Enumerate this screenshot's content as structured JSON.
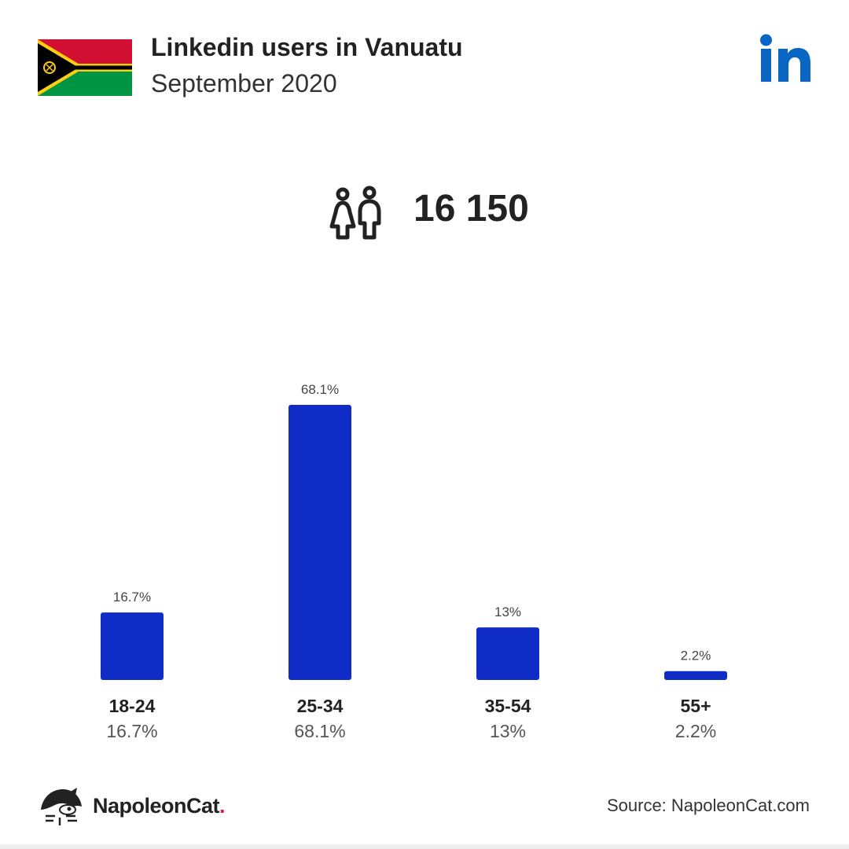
{
  "header": {
    "title": "Linkedin users in Vanuatu",
    "subtitle": "September 2020"
  },
  "summary": {
    "total_users": "16 150"
  },
  "chart_data": {
    "type": "bar",
    "categories": [
      "18-24",
      "25-34",
      "35-54",
      "55+"
    ],
    "values": [
      16.7,
      68.1,
      13,
      2.2
    ],
    "value_labels": [
      "16.7%",
      "68.1%",
      "13%",
      "2.2%"
    ],
    "ylim": [
      0,
      68.1
    ],
    "grid": false,
    "bar_color": "#0f2cc6"
  },
  "footer": {
    "brand_name": "NapoleonCat",
    "brand_dot": ".",
    "source": "Source: NapoleonCat.com"
  },
  "colors": {
    "linkedin_blue": "#0a66c2",
    "bar": "#0f2cc6",
    "brand_dot": "#e0203a"
  },
  "icons": {
    "flag": "vanuatu-flag-icon",
    "brand": "linkedin-logo-icon",
    "users": "users-icon",
    "footer_logo": "napoleoncat-logo-icon"
  }
}
